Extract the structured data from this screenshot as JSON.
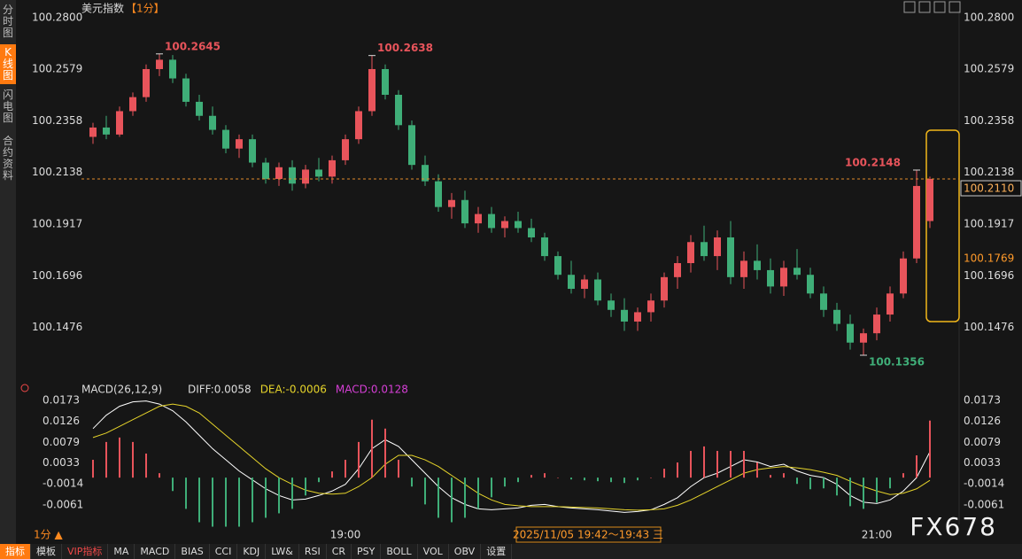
{
  "sidebar": [
    "分时图",
    "K线图",
    "闪电图",
    "合约资料"
  ],
  "toolbar": [
    "指标",
    "模板",
    "VIP指标",
    "MA",
    "MACD",
    "BIAS",
    "CCI",
    "KDJ",
    "LW&",
    "RSI",
    "CR",
    "PSY",
    "BOLL",
    "VOL",
    "OBV",
    "设置"
  ],
  "chart_data": {
    "type": "candlestick",
    "title": "美元指数",
    "period": "【1分】",
    "period_label": "1分 ▲",
    "cursor_time": "2025/11/05 19:42～19:43 三",
    "watermark": "FX678",
    "up_color": "#e8545b",
    "down_color": "#3fae78",
    "categories": [
      null,
      null,
      null,
      null,
      null,
      null,
      null,
      null,
      null,
      null,
      null,
      null,
      null,
      null,
      null,
      null,
      null,
      null,
      null,
      "19:00",
      null,
      null,
      null,
      null,
      null,
      null,
      null,
      null,
      null,
      null,
      null,
      null,
      null,
      null,
      null,
      null,
      null,
      null,
      null,
      null,
      null,
      null,
      null,
      null,
      null,
      null,
      null,
      null,
      null,
      null,
      null,
      null,
      null,
      null,
      null,
      null,
      null,
      null,
      null,
      "21:00",
      null,
      null,
      null,
      null
    ],
    "candles": [
      [
        100.229,
        100.235,
        100.226,
        100.233
      ],
      [
        100.233,
        100.238,
        100.228,
        100.23
      ],
      [
        100.23,
        100.242,
        100.229,
        100.24
      ],
      [
        100.24,
        100.248,
        100.238,
        100.246
      ],
      [
        100.246,
        100.26,
        100.244,
        100.258
      ],
      [
        100.258,
        100.2645,
        100.255,
        100.262
      ],
      [
        100.262,
        100.264,
        100.252,
        100.254
      ],
      [
        100.254,
        100.256,
        100.242,
        100.244
      ],
      [
        100.244,
        100.247,
        100.236,
        100.238
      ],
      [
        100.238,
        100.242,
        100.23,
        100.232
      ],
      [
        100.232,
        100.234,
        100.222,
        100.224
      ],
      [
        100.224,
        100.23,
        100.22,
        100.228
      ],
      [
        100.228,
        100.23,
        100.216,
        100.218
      ],
      [
        100.218,
        100.22,
        100.209,
        100.211
      ],
      [
        100.211,
        100.218,
        100.208,
        100.216
      ],
      [
        100.216,
        100.219,
        100.206,
        100.209
      ],
      [
        100.209,
        100.217,
        100.207,
        100.215
      ],
      [
        100.215,
        100.22,
        100.21,
        100.212
      ],
      [
        100.212,
        100.221,
        100.209,
        100.219
      ],
      [
        100.219,
        100.23,
        100.217,
        100.228
      ],
      [
        100.228,
        100.242,
        100.226,
        100.24
      ],
      [
        100.24,
        100.2638,
        100.238,
        100.258
      ],
      [
        100.258,
        100.26,
        100.245,
        100.247
      ],
      [
        100.247,
        100.249,
        100.232,
        100.234
      ],
      [
        100.234,
        100.236,
        100.215,
        100.217
      ],
      [
        100.217,
        100.221,
        100.208,
        100.21
      ],
      [
        100.21,
        100.213,
        100.197,
        100.199
      ],
      [
        100.199,
        100.205,
        100.194,
        100.202
      ],
      [
        100.202,
        100.206,
        100.19,
        100.192
      ],
      [
        100.192,
        100.199,
        100.188,
        100.196
      ],
      [
        100.196,
        100.199,
        100.188,
        100.19
      ],
      [
        100.19,
        100.195,
        100.186,
        100.193
      ],
      [
        100.193,
        100.197,
        100.188,
        100.19
      ],
      [
        100.19,
        100.194,
        100.184,
        100.186
      ],
      [
        100.186,
        100.188,
        100.176,
        100.178
      ],
      [
        100.178,
        100.18,
        100.168,
        100.17
      ],
      [
        100.17,
        100.176,
        100.162,
        100.164
      ],
      [
        100.164,
        100.17,
        100.16,
        100.168
      ],
      [
        100.168,
        100.171,
        100.157,
        100.159
      ],
      [
        100.159,
        100.162,
        100.152,
        100.155
      ],
      [
        100.155,
        100.16,
        100.146,
        100.15
      ],
      [
        100.15,
        100.156,
        100.146,
        100.154
      ],
      [
        100.154,
        100.162,
        100.15,
        100.159
      ],
      [
        100.159,
        100.171,
        100.156,
        100.169
      ],
      [
        100.169,
        100.178,
        100.164,
        100.175
      ],
      [
        100.175,
        100.187,
        100.171,
        100.184
      ],
      [
        100.184,
        100.191,
        100.176,
        100.178
      ],
      [
        100.178,
        100.189,
        100.172,
        100.186
      ],
      [
        100.186,
        100.193,
        100.166,
        100.169
      ],
      [
        100.169,
        100.18,
        100.164,
        100.176
      ],
      [
        100.176,
        100.183,
        100.168,
        100.172
      ],
      [
        100.172,
        100.177,
        100.162,
        100.165
      ],
      [
        100.165,
        100.176,
        100.161,
        100.173
      ],
      [
        100.173,
        100.181,
        100.168,
        100.17
      ],
      [
        100.17,
        100.173,
        100.16,
        100.162
      ],
      [
        100.162,
        100.165,
        100.152,
        100.155
      ],
      [
        100.155,
        100.158,
        100.146,
        100.149
      ],
      [
        100.149,
        100.153,
        100.138,
        100.141
      ],
      [
        100.141,
        100.147,
        100.1356,
        100.145
      ],
      [
        100.145,
        100.156,
        100.142,
        100.153
      ],
      [
        100.153,
        100.165,
        100.15,
        100.162
      ],
      [
        100.162,
        100.18,
        100.16,
        100.177
      ],
      [
        100.177,
        100.2148,
        100.175,
        100.208
      ],
      [
        100.193,
        100.212,
        100.19,
        100.211
      ]
    ],
    "ylim": [
      100.1265,
      100.283
    ],
    "yticks": [
      {
        "value": 100.28,
        "label": "100.2800"
      },
      100.2579,
      100.2358,
      100.2138,
      100.1917,
      100.1696,
      100.1476
    ],
    "extremes": [
      {
        "value": 100.2645,
        "label": "100.2645"
      },
      {
        "value": 100.2638,
        "label": "100.2638"
      },
      {
        "value": 100.2148,
        "label": "100.2148"
      },
      {
        "value": 100.1356,
        "label": "100.1356"
      }
    ],
    "last_price": {
      "value": 100.211,
      "label": "100.2110"
    },
    "cursor_price": {
      "value": 100.1769,
      "label": "100.1769"
    },
    "macd": {
      "params": "MACD(26,12,9)",
      "ylim": [
        -0.0101,
        0.0197
      ],
      "yticks": [
        0.0173,
        0.0126,
        0.0079,
        0.0033,
        -0.0014,
        -0.0061
      ],
      "series": [
        {
          "label": "DIFF:0.0058",
          "type": "line",
          "color": "#ffffff",
          "values": [
            0.011,
            0.014,
            0.016,
            0.017,
            0.0172,
            0.0165,
            0.015,
            0.0125,
            0.0095,
            0.0065,
            0.004,
            0.0015,
            -0.0005,
            -0.0025,
            -0.004,
            -0.005,
            -0.0048,
            -0.004,
            -0.003,
            -0.0015,
            0.002,
            0.0065,
            0.0085,
            0.007,
            0.004,
            0.001,
            -0.002,
            -0.0045,
            -0.006,
            -0.007,
            -0.0072,
            -0.007,
            -0.0068,
            -0.0062,
            -0.006,
            -0.0065,
            -0.0068,
            -0.007,
            -0.0072,
            -0.0075,
            -0.0078,
            -0.0076,
            -0.0072,
            -0.006,
            -0.0045,
            -0.002,
            0.0,
            0.001,
            0.0025,
            0.004,
            0.0035,
            0.0025,
            0.003,
            0.0015,
            0.0005,
            0.0,
            -0.0015,
            -0.004,
            -0.0055,
            -0.0058,
            -0.005,
            -0.003,
            0.0,
            0.0058
          ]
        },
        {
          "label": "DEA:-0.0006",
          "type": "line",
          "color": "#e6d42a",
          "values": [
            0.009,
            0.01,
            0.0115,
            0.013,
            0.0145,
            0.016,
            0.0165,
            0.016,
            0.0145,
            0.012,
            0.0095,
            0.007,
            0.0045,
            0.002,
            0.0,
            -0.0015,
            -0.0028,
            -0.0035,
            -0.0037,
            -0.0035,
            -0.002,
            0.0,
            0.003,
            0.005,
            0.005,
            0.004,
            0.0025,
            0.0005,
            -0.0015,
            -0.0035,
            -0.005,
            -0.006,
            -0.0063,
            -0.0065,
            -0.0065,
            -0.0065,
            -0.0066,
            -0.0067,
            -0.0068,
            -0.007,
            -0.0072,
            -0.0073,
            -0.0072,
            -0.007,
            -0.0062,
            -0.005,
            -0.0035,
            -0.002,
            -0.0005,
            0.001,
            0.0018,
            0.0022,
            0.0025,
            0.0022,
            0.0018,
            0.0012,
            0.0005,
            -0.0008,
            -0.002,
            -0.003,
            -0.0038,
            -0.0035,
            -0.0025,
            -0.0006
          ]
        },
        {
          "label": "MACD:0.0128",
          "type": "bar",
          "color": "#d63fd6",
          "values": [
            0.004,
            0.008,
            0.009,
            0.008,
            0.0054,
            0.001,
            -0.003,
            -0.007,
            -0.01,
            -0.011,
            -0.011,
            -0.011,
            -0.01,
            -0.009,
            -0.008,
            -0.007,
            -0.004,
            -0.001,
            0.0014,
            0.004,
            0.008,
            0.013,
            0.011,
            0.004,
            -0.002,
            -0.006,
            -0.009,
            -0.01,
            -0.009,
            -0.007,
            -0.0044,
            -0.002,
            -0.001,
            0.0006,
            0.001,
            0.0,
            -0.0004,
            -0.0006,
            -0.0008,
            -0.001,
            -0.0012,
            -0.0006,
            0.0,
            0.002,
            0.0034,
            0.006,
            0.007,
            0.006,
            0.006,
            0.006,
            0.0034,
            0.0006,
            0.001,
            -0.0014,
            -0.0026,
            -0.0024,
            -0.004,
            -0.0064,
            -0.007,
            -0.0056,
            -0.0024,
            0.001,
            0.005,
            0.0128
          ]
        }
      ]
    }
  }
}
